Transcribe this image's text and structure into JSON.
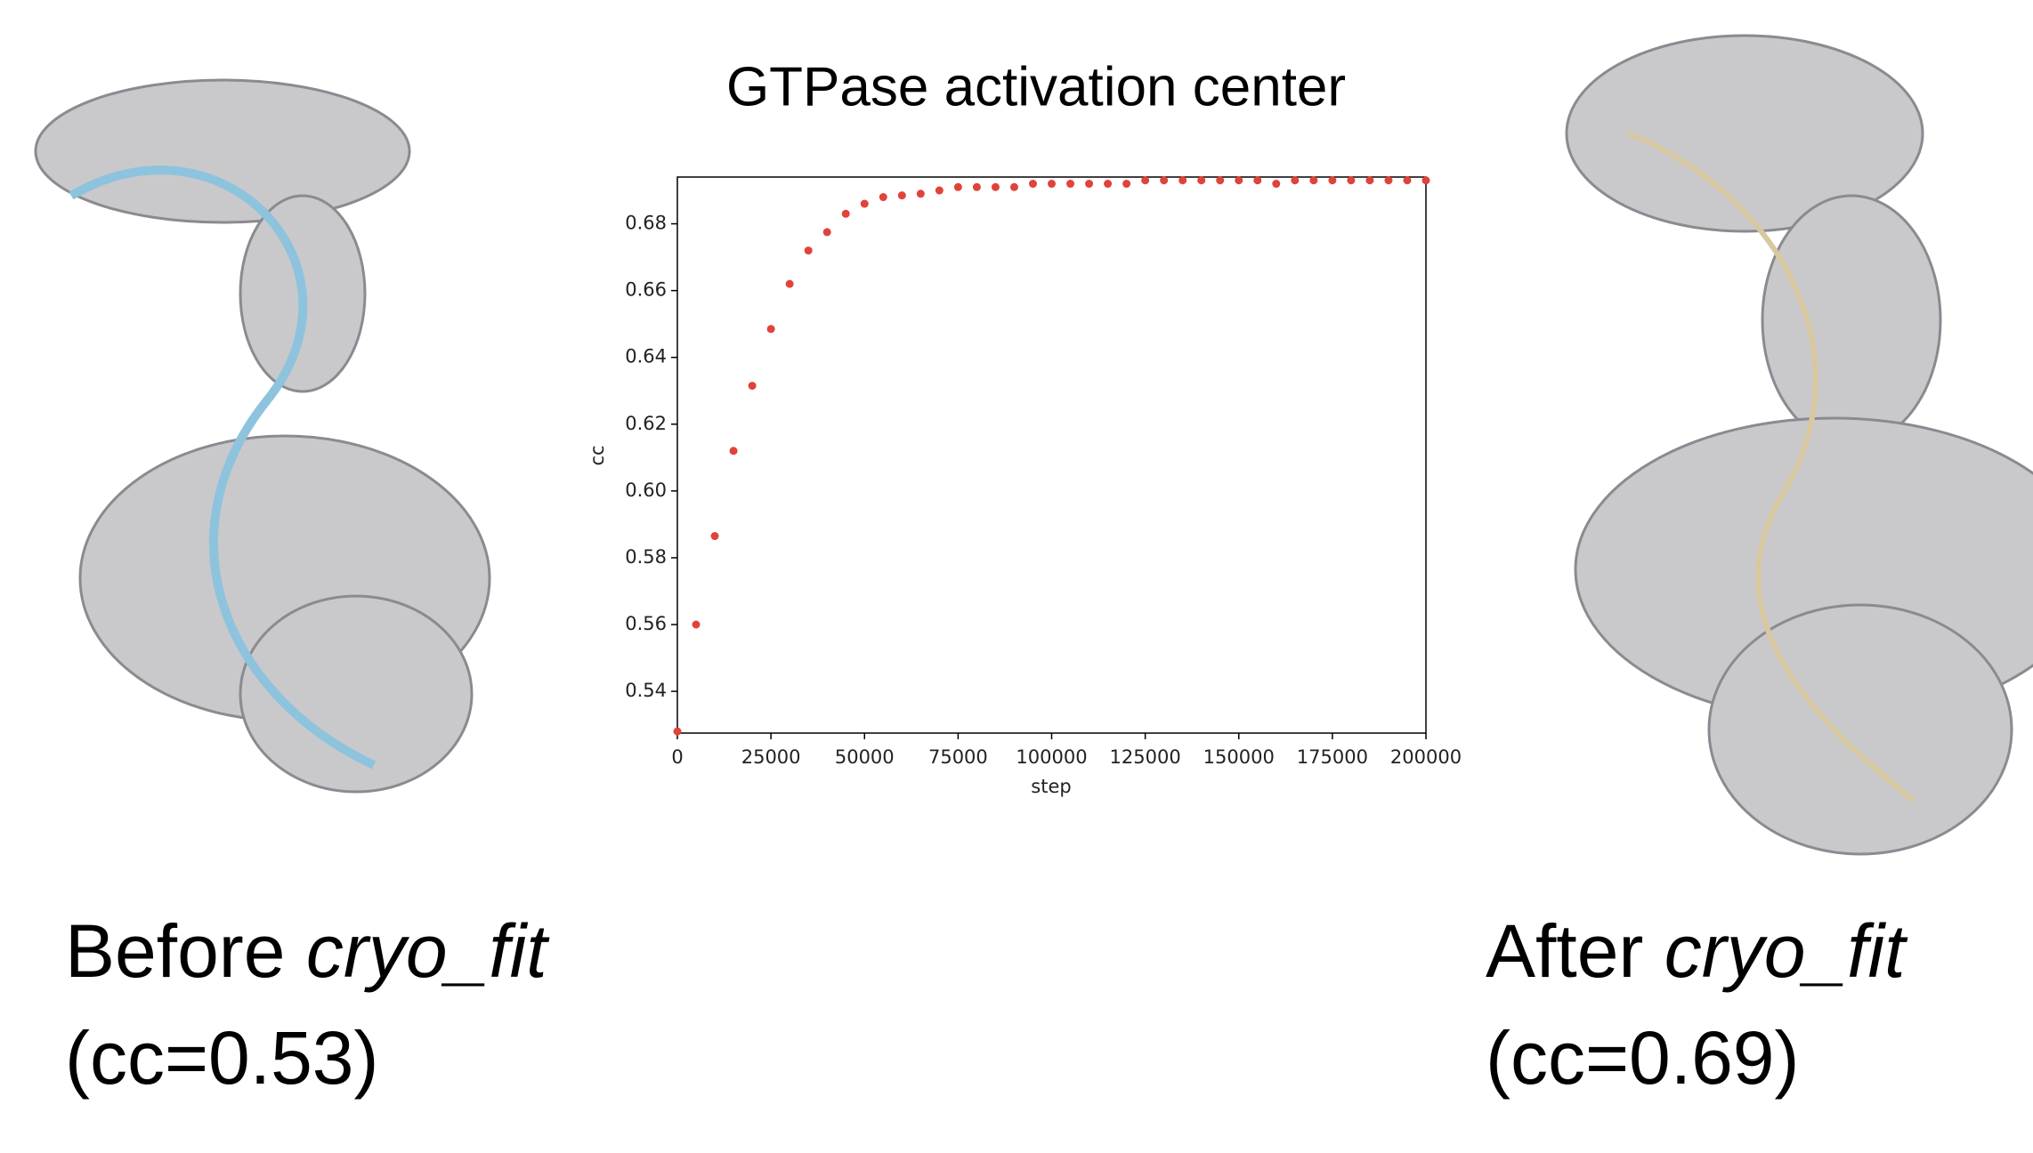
{
  "chart_data": {
    "type": "scatter",
    "title": "GTPase activation center",
    "x_label": "step",
    "y_label": "cc",
    "x": [
      0,
      5000,
      10000,
      15000,
      20000,
      25000,
      30000,
      35000,
      40000,
      45000,
      50000,
      55000,
      60000,
      65000,
      70000,
      75000,
      80000,
      85000,
      90000,
      95000,
      100000,
      105000,
      110000,
      115000,
      120000,
      125000,
      130000,
      135000,
      140000,
      145000,
      150000,
      155000,
      160000,
      165000,
      170000,
      175000,
      180000,
      185000,
      190000,
      195000,
      200000
    ],
    "series": [
      {
        "color": "#e0433a",
        "values": [
          0.528,
          0.56,
          0.5865,
          0.612,
          0.6315,
          0.6485,
          0.662,
          0.672,
          0.6775,
          0.683,
          0.686,
          0.688,
          0.6885,
          0.689,
          0.69,
          0.691,
          0.691,
          0.691,
          0.691,
          0.692,
          0.692,
          0.692,
          0.692,
          0.692,
          0.692,
          0.693,
          0.693,
          0.693,
          0.693,
          0.693,
          0.693,
          0.693,
          0.692,
          0.693,
          0.693,
          0.693,
          0.693,
          0.693,
          0.693,
          0.693,
          0.693
        ]
      }
    ],
    "xlim": [
      0,
      200000
    ],
    "ylim": [
      0.5275,
      0.694
    ],
    "xticks": [
      0,
      25000,
      50000,
      75000,
      100000,
      125000,
      150000,
      175000,
      200000
    ],
    "yticks": [
      0.54,
      0.56,
      0.58,
      {
        "value": 0.6,
        "label": "0.60"
      },
      0.62,
      0.64,
      0.66,
      0.68
    ],
    "grid": false
  },
  "before": {
    "prefix": "Before",
    "tool": "cryo_fit",
    "score": "(cc=0.53)"
  },
  "after": {
    "prefix": "After",
    "tool": "cryo_fit",
    "score": "(cc=0.69)"
  }
}
